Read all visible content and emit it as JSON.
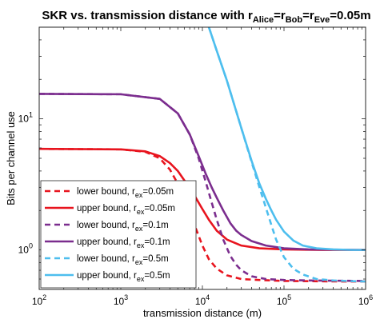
{
  "chart_data": {
    "type": "line",
    "title": {
      "main": "SKR vs. transmission distance with r",
      "parts": [
        {
          "sub": "Alice",
          "after": "=r"
        },
        {
          "sub": "Bob",
          "after": "=r"
        },
        {
          "sub": "Eve",
          "after": "=0.05m"
        }
      ]
    },
    "xlabel": "transmission distance (m)",
    "ylabel": "Bits per channel use",
    "x_scale": "log",
    "y_scale": "log",
    "xlim": [
      100,
      1000000
    ],
    "ylim": [
      0.5,
      50
    ],
    "x_ticks": [
      {
        "base": "10",
        "exp": "2",
        "value": 100
      },
      {
        "base": "10",
        "exp": "3",
        "value": 1000
      },
      {
        "base": "10",
        "exp": "4",
        "value": 10000
      },
      {
        "base": "10",
        "exp": "5",
        "value": 100000
      },
      {
        "base": "10",
        "exp": "6",
        "value": 1000000
      }
    ],
    "y_ticks": [
      {
        "base": "10",
        "exp": "0",
        "value": 1
      },
      {
        "base": "10",
        "exp": "1",
        "value": 10
      }
    ],
    "grid": false,
    "legend_position": "bottom-left",
    "series": [
      {
        "name": "lower bound, r",
        "sub": "ex",
        "suffix": "=0.05m",
        "color": "#e8141e",
        "dash": true,
        "x": [
          100,
          1000,
          2000,
          3000,
          4000,
          5000,
          6000,
          7000,
          8000,
          10000,
          12000,
          15000,
          20000,
          30000,
          50000,
          100000,
          200000,
          500000,
          1000000
        ],
        "y": [
          5.9,
          5.85,
          5.6,
          5.0,
          4.1,
          3.2,
          2.5,
          1.95,
          1.55,
          1.08,
          0.85,
          0.72,
          0.64,
          0.6,
          0.59,
          0.58,
          0.578,
          0.575,
          0.575
        ]
      },
      {
        "name": "upper bound, r",
        "sub": "ex",
        "suffix": "=0.05m",
        "color": "#e8141e",
        "dash": false,
        "x": [
          100,
          1000,
          2000,
          3000,
          4000,
          5000,
          6000,
          7000,
          8000,
          10000,
          12000,
          15000,
          20000,
          30000,
          50000,
          100000,
          300000,
          1000000
        ],
        "y": [
          5.9,
          5.85,
          5.65,
          5.2,
          4.6,
          4.0,
          3.4,
          2.95,
          2.6,
          2.05,
          1.7,
          1.4,
          1.2,
          1.08,
          1.03,
          1.01,
          1.0,
          1.0
        ]
      },
      {
        "name": "lower bound, r",
        "sub": "ex",
        "suffix": "=0.1m",
        "color": "#7b2d8e",
        "dash": true,
        "x": [
          100,
          1000,
          3000,
          5000,
          7000,
          9000,
          11000,
          13000,
          15000,
          18000,
          22000,
          26000,
          30000,
          40000,
          60000,
          100000,
          200000,
          1000000
        ],
        "y": [
          15.5,
          15.4,
          14.2,
          11.0,
          7.6,
          5.0,
          3.3,
          2.3,
          1.7,
          1.2,
          0.9,
          0.77,
          0.7,
          0.63,
          0.6,
          0.59,
          0.585,
          0.58
        ]
      },
      {
        "name": "upper bound, r",
        "sub": "ex",
        "suffix": "=0.1m",
        "color": "#7b2d8e",
        "dash": false,
        "x": [
          100,
          1000,
          3000,
          5000,
          7000,
          9000,
          11000,
          13000,
          15000,
          18000,
          22000,
          26000,
          30000,
          40000,
          60000,
          100000,
          200000,
          1000000
        ],
        "y": [
          15.5,
          15.4,
          14.2,
          11.0,
          7.6,
          5.2,
          3.8,
          3.0,
          2.5,
          2.0,
          1.6,
          1.4,
          1.3,
          1.17,
          1.08,
          1.03,
          1.01,
          1.0
        ]
      },
      {
        "name": "lower bound, r",
        "sub": "ex",
        "suffix": "=0.5m",
        "color": "#4dbeee",
        "dash": true,
        "x": [
          12000,
          15000,
          20000,
          30000,
          40000,
          50000,
          60000,
          70000,
          80000,
          100000,
          130000,
          170000,
          250000,
          400000,
          700000,
          1000000
        ],
        "y": [
          50,
          33,
          19.5,
          8.5,
          4.7,
          3.0,
          2.1,
          1.55,
          1.2,
          0.88,
          0.72,
          0.65,
          0.6,
          0.585,
          0.578,
          0.575
        ]
      },
      {
        "name": "upper bound, r",
        "sub": "ex",
        "suffix": "=0.5m",
        "color": "#4dbeee",
        "dash": false,
        "x": [
          12000,
          15000,
          20000,
          30000,
          40000,
          50000,
          60000,
          70000,
          80000,
          100000,
          130000,
          170000,
          250000,
          400000,
          700000,
          1000000
        ],
        "y": [
          50,
          33,
          19.5,
          8.5,
          4.8,
          3.2,
          2.45,
          2.0,
          1.7,
          1.38,
          1.18,
          1.08,
          1.03,
          1.01,
          1.0,
          1.0
        ]
      }
    ]
  }
}
